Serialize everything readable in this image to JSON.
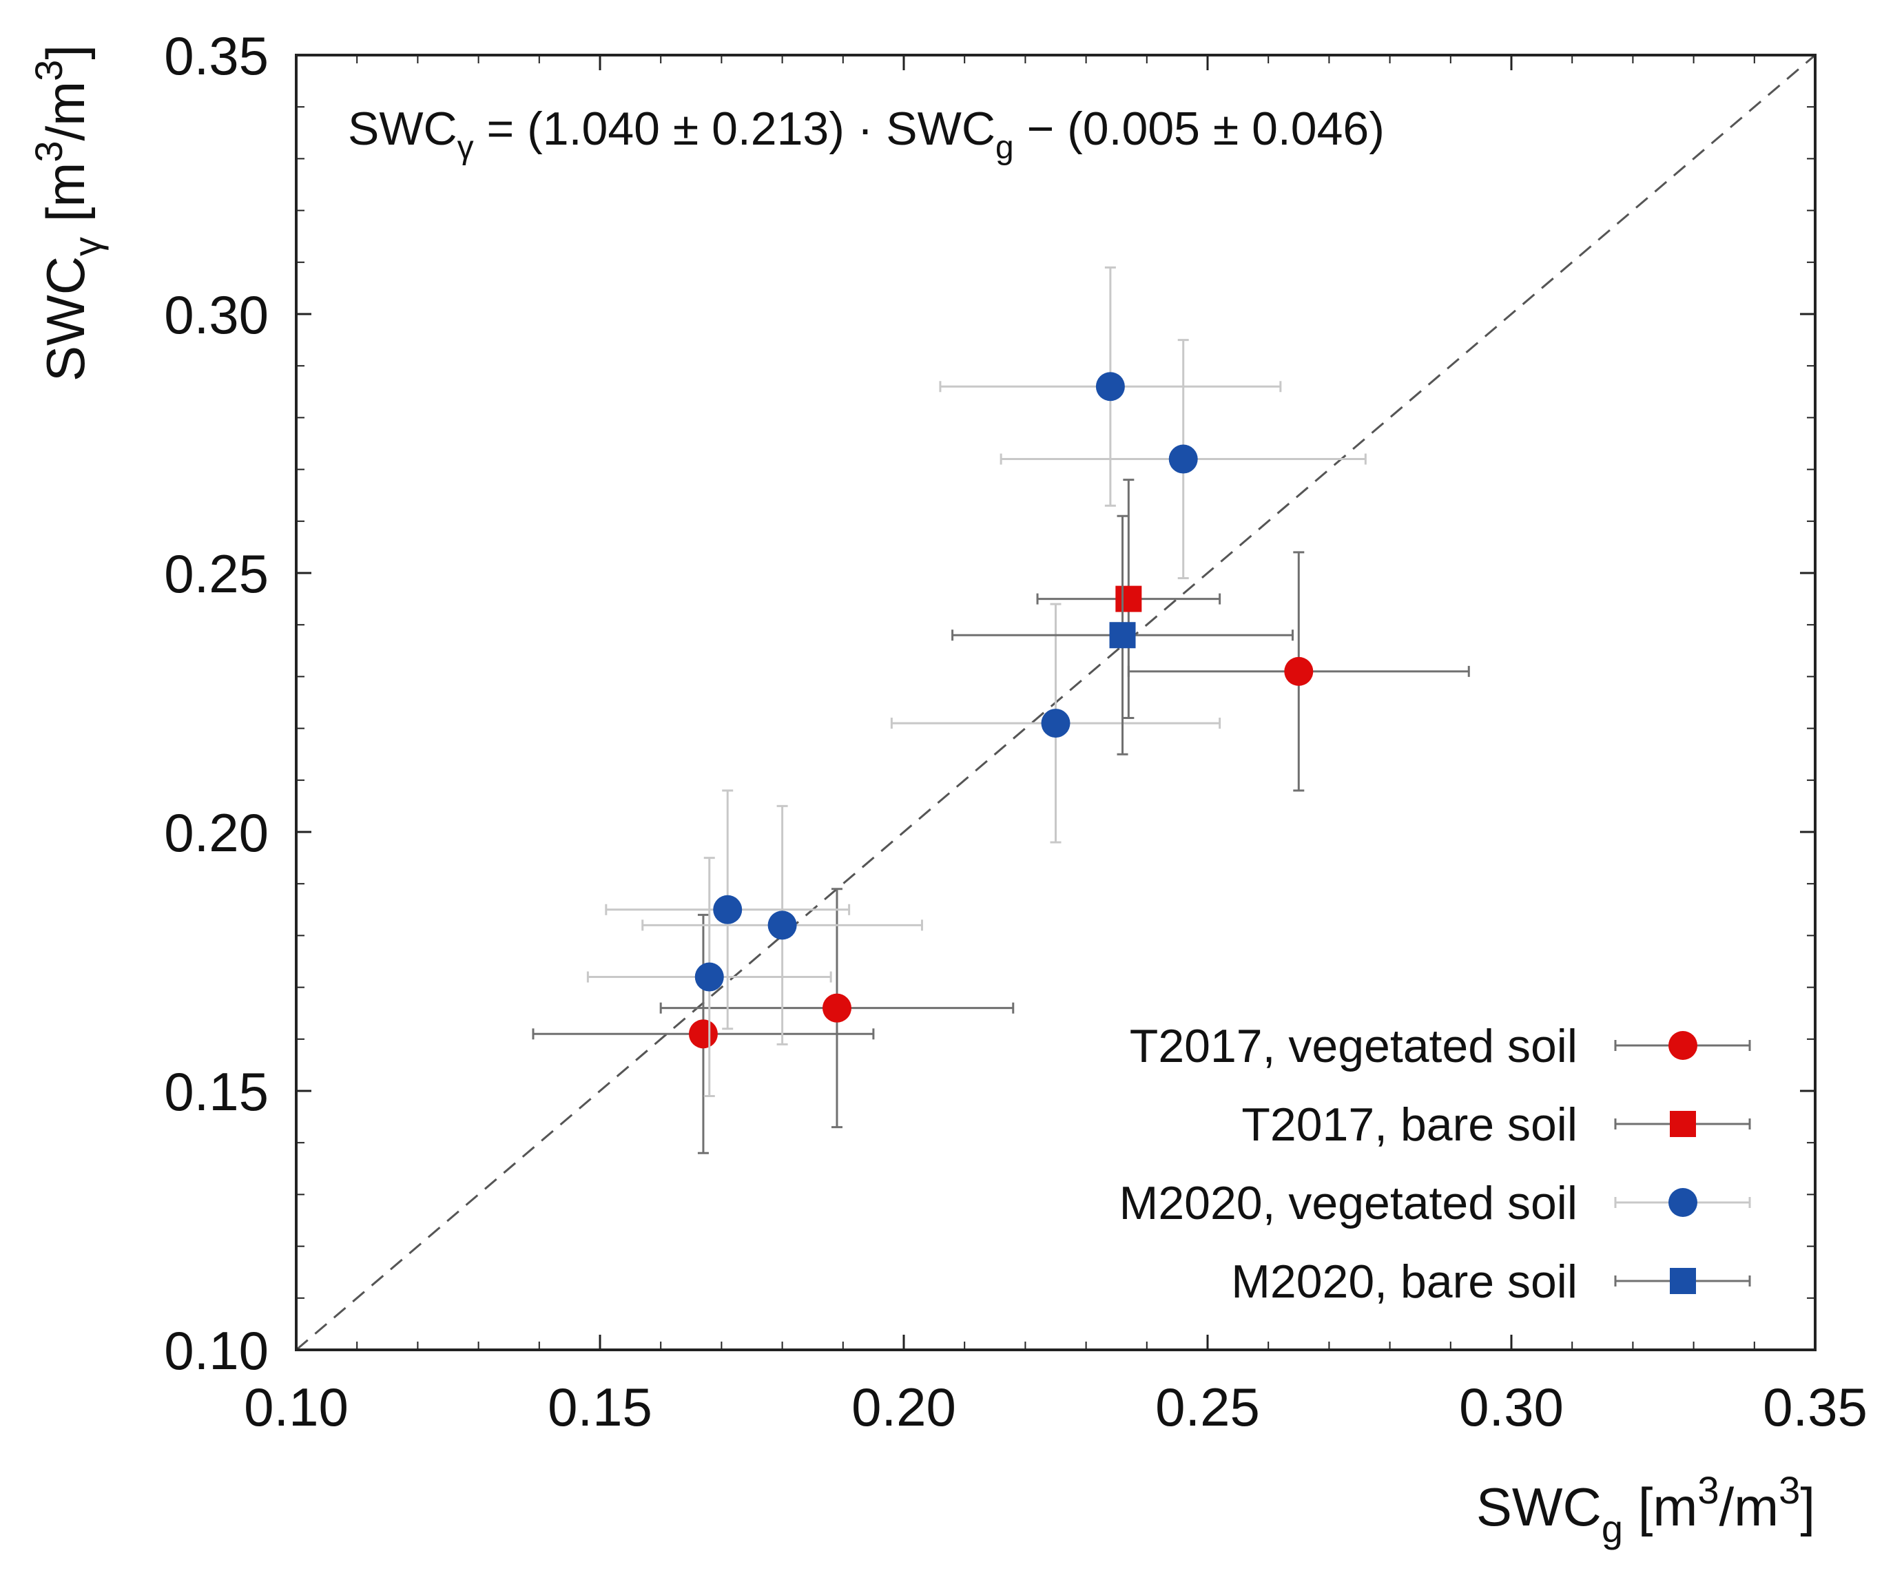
{
  "chart_data": {
    "type": "scatter",
    "title": "",
    "xlabel": {
      "base": "SWC",
      "sub": "g",
      "unit_open": " [m",
      "sup1": "3",
      "unit_mid": "/m",
      "sup2": "3",
      "unit_close": "]"
    },
    "ylabel": {
      "base": "SWC",
      "sub": "γ",
      "unit_open": " [m",
      "sup1": "3",
      "unit_mid": "/m",
      "sup2": "3",
      "unit_close": "]"
    },
    "xlim": [
      0.1,
      0.35
    ],
    "ylim": [
      0.1,
      0.35
    ],
    "xticks": [
      0.1,
      0.15,
      0.2,
      0.25,
      0.3,
      0.35
    ],
    "yticks": [
      0.1,
      0.15,
      0.2,
      0.25,
      0.3,
      0.35
    ],
    "xtick_labels": [
      "0.10",
      "0.15",
      "0.20",
      "0.25",
      "0.30",
      "0.35"
    ],
    "ytick_labels": [
      "0.10",
      "0.15",
      "0.20",
      "0.25",
      "0.30",
      "0.35"
    ],
    "minor_ticks_per_major": 4,
    "grid": false,
    "legend_position": "bottom-right",
    "annotation": {
      "lhs_base": "SWC",
      "lhs_sub": "γ",
      "mid": " = (1.040 ± 0.213) · SWC",
      "mid_sub": "g",
      "tail": " − (0.005 ± 0.046)"
    },
    "reference_line": {
      "type": "identity",
      "style": "dashed",
      "color": "#555555"
    },
    "series": [
      {
        "name": "T2017, vegetated soil",
        "marker": "circle",
        "color": "#dd0a0a",
        "errcolor": "#707070",
        "points": [
          {
            "x": 0.167,
            "y": 0.161,
            "xerr": 0.028,
            "yerr": 0.023
          },
          {
            "x": 0.189,
            "y": 0.166,
            "xerr": 0.029,
            "yerr": 0.023
          },
          {
            "x": 0.265,
            "y": 0.231,
            "xerr": 0.028,
            "yerr": 0.023
          }
        ]
      },
      {
        "name": "T2017, bare soil",
        "marker": "square",
        "color": "#dd0a0a",
        "errcolor": "#707070",
        "points": [
          {
            "x": 0.237,
            "y": 0.245,
            "xerr": 0.015,
            "yerr": 0.023
          }
        ]
      },
      {
        "name": "M2020, vegetated soil",
        "marker": "circle",
        "color": "#1a4fa8",
        "errcolor": "#c8c8c8",
        "points": [
          {
            "x": 0.168,
            "y": 0.172,
            "xerr": 0.02,
            "yerr": 0.023
          },
          {
            "x": 0.171,
            "y": 0.185,
            "xerr": 0.02,
            "yerr": 0.023
          },
          {
            "x": 0.18,
            "y": 0.182,
            "xerr": 0.023,
            "yerr": 0.023
          },
          {
            "x": 0.225,
            "y": 0.221,
            "xerr": 0.027,
            "yerr": 0.023
          },
          {
            "x": 0.234,
            "y": 0.286,
            "xerr": 0.028,
            "yerr": 0.023
          },
          {
            "x": 0.246,
            "y": 0.272,
            "xerr": 0.03,
            "yerr": 0.023
          }
        ]
      },
      {
        "name": "M2020, bare soil",
        "marker": "square",
        "color": "#1a4fa8",
        "errcolor": "#707070",
        "points": [
          {
            "x": 0.236,
            "y": 0.238,
            "xerr": 0.028,
            "yerr": 0.023
          }
        ]
      }
    ]
  }
}
